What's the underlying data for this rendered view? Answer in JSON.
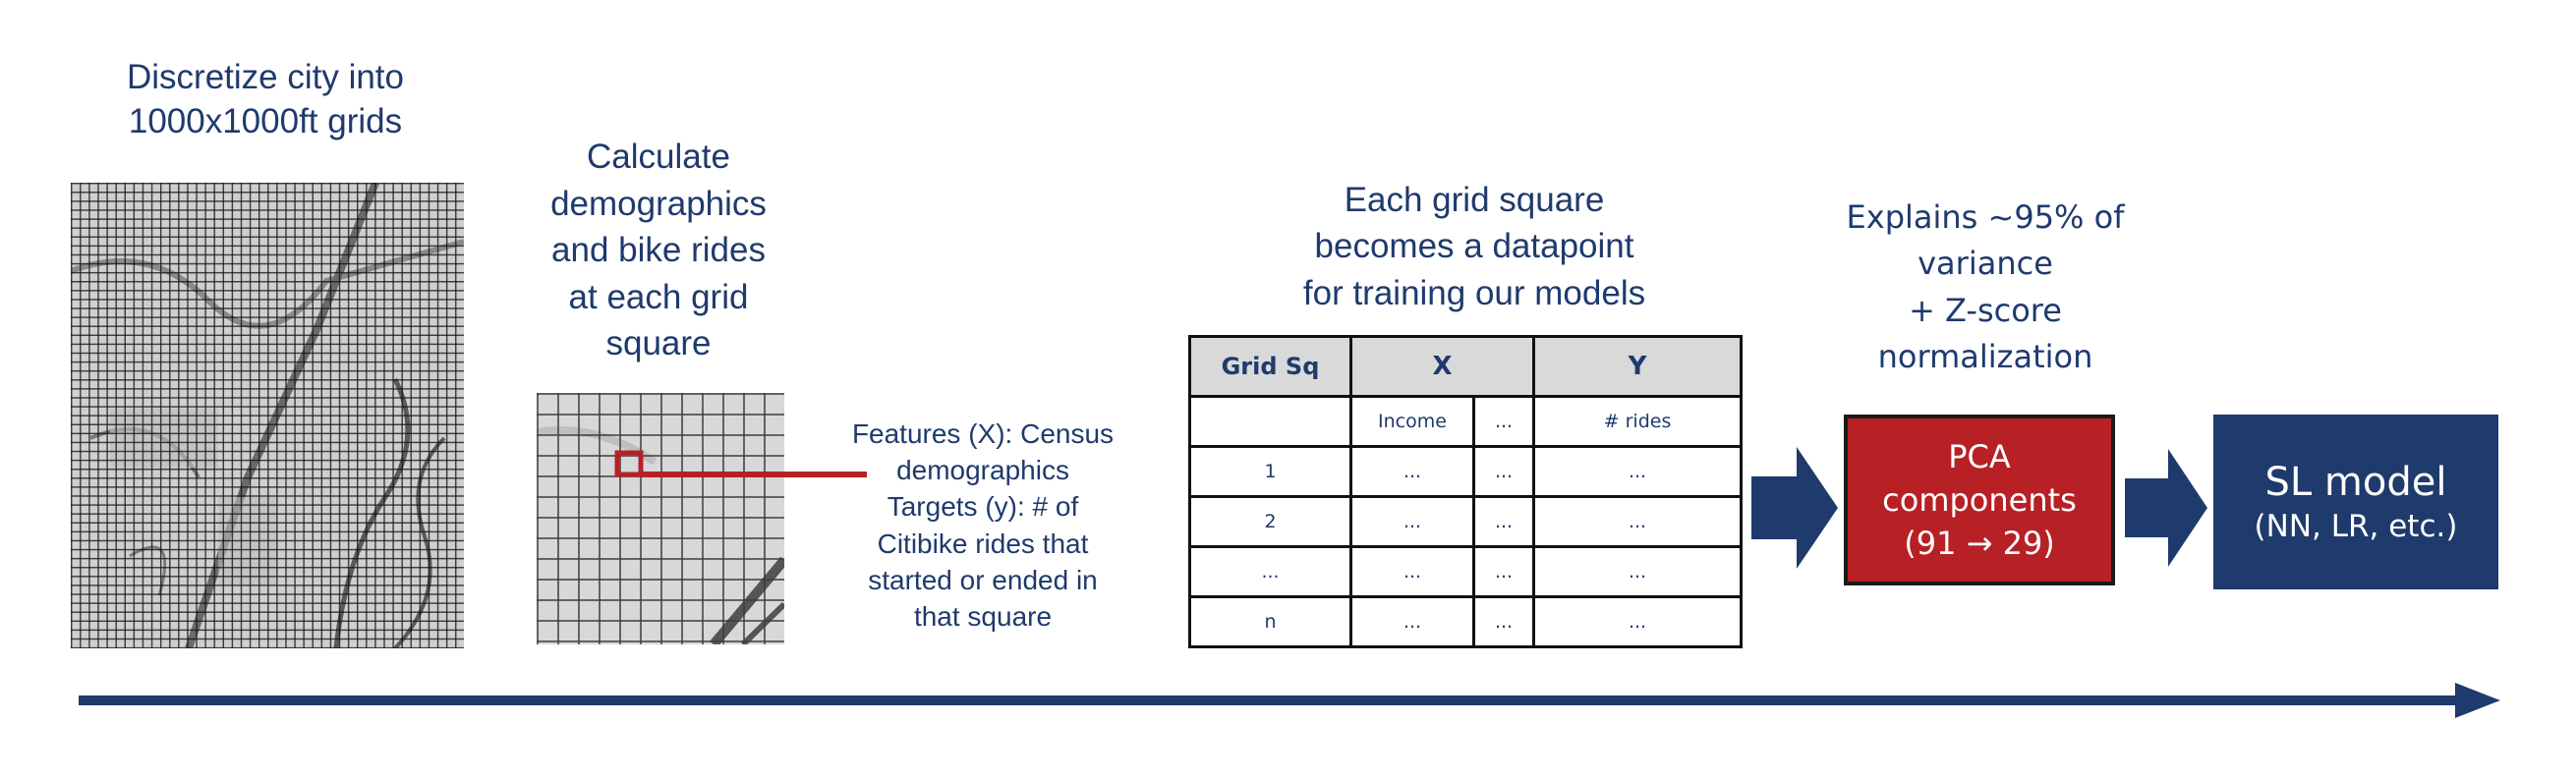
{
  "step1": {
    "caption_lines": [
      "Discretize city into",
      "1000x1000ft grids"
    ]
  },
  "step2": {
    "caption_lines": [
      "Calculate",
      "demographics",
      "and bike rides",
      "at each grid",
      "square"
    ]
  },
  "features_note": {
    "lines": [
      "Features (X): Census",
      "demographics",
      "Targets (y): # of",
      "Citibike rides that",
      "started or ended in",
      "that square"
    ]
  },
  "step3": {
    "caption_lines": [
      "Each grid square",
      "becomes a datapoint",
      "for training our models"
    ],
    "table": {
      "headers": [
        "Grid Sq",
        "X",
        "Y"
      ],
      "subheaders": [
        "",
        "Income",
        "...",
        "# rides"
      ],
      "rows": [
        [
          "1",
          "...",
          "...",
          "..."
        ],
        [
          "2",
          "...",
          "...",
          "..."
        ],
        [
          "...",
          "...",
          "...",
          "..."
        ],
        [
          "n",
          "...",
          "...",
          "..."
        ]
      ]
    }
  },
  "step4": {
    "note_lines": [
      "Explains ~95% of",
      "variance",
      "+ Z-score",
      "normalization"
    ],
    "box_lines": [
      "PCA",
      "components",
      "(91 → 29)"
    ]
  },
  "step5": {
    "box_lines": [
      "SL model",
      "(NN, LR, etc.)"
    ]
  },
  "colors": {
    "navy": "#1f3a6d",
    "red": "#b72025",
    "red_border": "#1a1a1a",
    "header_gray": "#d9d9d9"
  }
}
